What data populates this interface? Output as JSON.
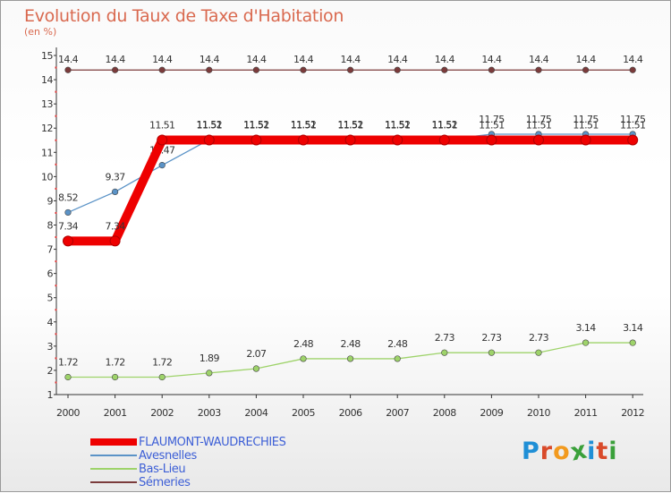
{
  "chart_data": {
    "type": "line",
    "title": "Evolution du Taux de Taxe d'Habitation",
    "subtitle": "(en %)",
    "xlabel": "",
    "ylabel": "",
    "categories": [
      "2000",
      "2001",
      "2002",
      "2003",
      "2004",
      "2005",
      "2006",
      "2007",
      "2008",
      "2009",
      "2010",
      "2011",
      "2012"
    ],
    "ylim": [
      1,
      15
    ],
    "yticks": [
      1,
      2,
      3,
      4,
      5,
      6,
      7,
      8,
      9,
      10,
      11,
      12,
      13,
      14,
      15
    ],
    "grid": false,
    "series": [
      {
        "name": "FLAUMONT-WAUDRECHIES",
        "color": "#ee0000",
        "style": "thick",
        "values": [
          7.34,
          7.34,
          11.51,
          11.51,
          11.51,
          11.51,
          11.51,
          11.51,
          11.51,
          11.51,
          11.51,
          11.51,
          11.51
        ],
        "labels": [
          "7.34",
          "7.34",
          "11.51",
          "11.51",
          "11.51",
          "11.51",
          "11.51",
          "11.51",
          "11.51",
          "11.51",
          "11.51",
          "11.51",
          "11.51"
        ]
      },
      {
        "name": "Avesnelles",
        "color": "#5b93c7",
        "style": "thin",
        "values": [
          8.52,
          9.37,
          10.47,
          11.52,
          11.52,
          11.52,
          11.52,
          11.52,
          11.52,
          11.75,
          11.75,
          11.75,
          11.75
        ],
        "labels": [
          "8.52",
          "9.37",
          "10.47",
          "11.52",
          "11.52",
          "11.52",
          "11.52",
          "11.52",
          "11.52",
          "11.75",
          "11.75",
          "11.75",
          "11.75"
        ]
      },
      {
        "name": "Bas-Lieu",
        "color": "#9ed36a",
        "style": "thin",
        "values": [
          1.72,
          1.72,
          1.72,
          1.89,
          2.07,
          2.48,
          2.48,
          2.48,
          2.73,
          2.73,
          2.73,
          3.14,
          3.14
        ],
        "labels": [
          "1.72",
          "1.72",
          "1.72",
          "1.89",
          "2.07",
          "2.48",
          "2.48",
          "2.48",
          "2.73",
          "2.73",
          "2.73",
          "3.14",
          "3.14"
        ]
      },
      {
        "name": "Sémeries",
        "color": "#7b3b3b",
        "style": "thin",
        "values": [
          14.4,
          14.4,
          14.4,
          14.4,
          14.4,
          14.4,
          14.4,
          14.4,
          14.4,
          14.4,
          14.4,
          14.4,
          14.4
        ],
        "labels": [
          "14.4",
          "14.4",
          "14.4",
          "14.4",
          "14.4",
          "14.4",
          "14.4",
          "14.4",
          "14.4",
          "14.4",
          "14.4",
          "14.4",
          "14.4"
        ]
      }
    ]
  },
  "logo": {
    "letters": [
      {
        "ch": "P",
        "color": "#1f8fd6"
      },
      {
        "ch": "r",
        "color": "#d94a2a"
      },
      {
        "ch": "o",
        "color": "#f29a1e"
      },
      {
        "ch": "x",
        "color": "#3aa03a"
      },
      {
        "ch": "i",
        "color": "#1f8fd6"
      },
      {
        "ch": "t",
        "color": "#d94a2a"
      },
      {
        "ch": "i",
        "color": "#3aa03a"
      }
    ]
  }
}
